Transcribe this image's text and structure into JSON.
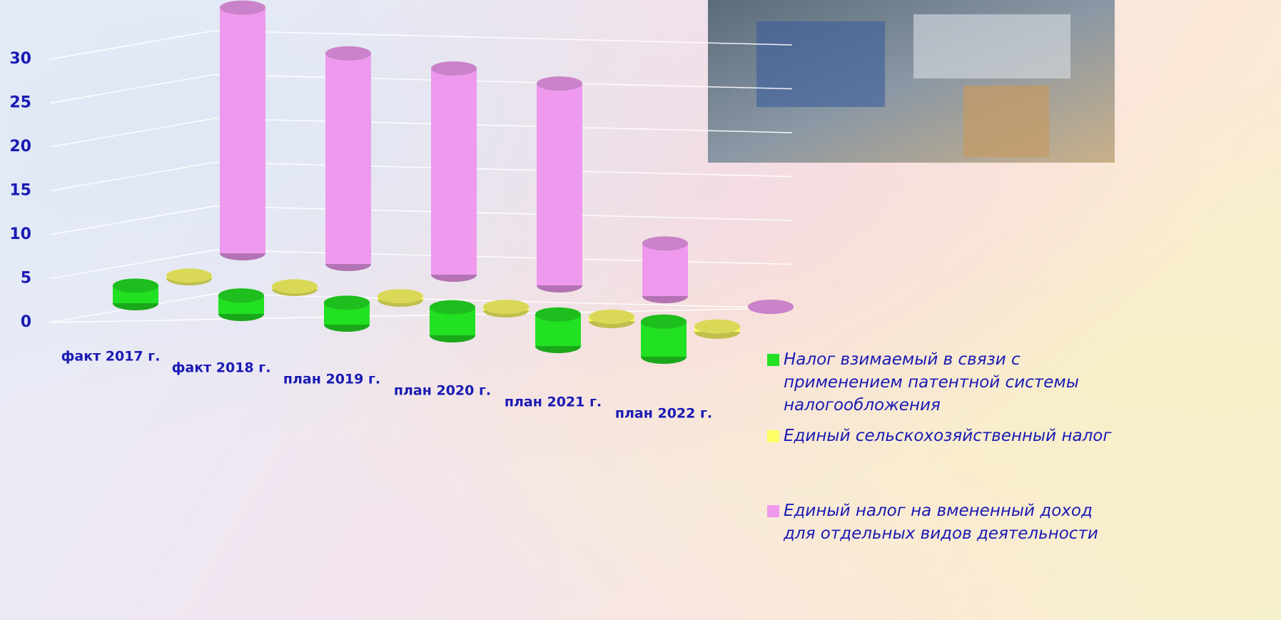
{
  "chart_data": {
    "type": "cylinder3d",
    "categories": [
      "факт 2017 г.",
      "факт 2018 г.",
      "план 2019 г.",
      "план 2020 г.",
      "план 2021 г.",
      "план 2022 г."
    ],
    "series": [
      {
        "name": "Налог взимаемый в связи с применением патентной системы налогообложения",
        "color": "#22e022",
        "values": [
          2,
          2.1,
          2.5,
          3.2,
          3.6,
          4
        ]
      },
      {
        "name": "Единый сельскохозяйственный налог",
        "color": "#ffff66",
        "values": [
          0.3,
          0.3,
          0.4,
          0.4,
          0.5,
          0.6
        ]
      },
      {
        "name": "Единый налог на вмененный доход для отдельных видов деятельности",
        "color": "#ee99ee",
        "values": [
          28,
          24,
          23.5,
          23,
          6,
          0
        ]
      }
    ],
    "ylim": [
      0,
      30
    ],
    "yticks": [
      0,
      5,
      10,
      15,
      20,
      25,
      30
    ],
    "grid": true
  }
}
